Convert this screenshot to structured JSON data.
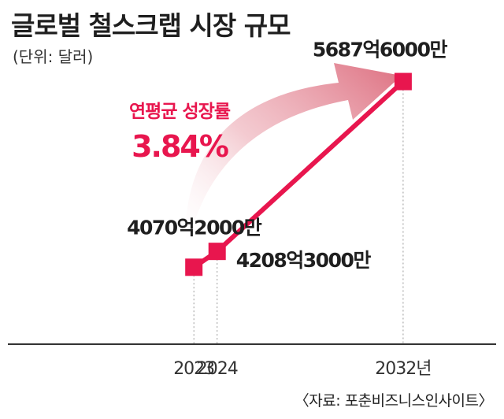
{
  "title": "글로벌 철스크랩 시장 규모",
  "unit": "(단위: 달러)",
  "source": "〈자료: 포춘비즈니스인사이트〉",
  "annotation": {
    "label": "연평균 성장률",
    "value": "3.84%"
  },
  "colors": {
    "accent": "#e8164e",
    "arrow": "#e27a88",
    "axis": "#333333"
  },
  "chart_data": {
    "type": "line",
    "title": "글로벌 철스크랩 시장 규모",
    "x": [
      2023,
      2024,
      2032
    ],
    "x_tick_labels": [
      "2023",
      "2024",
      "2032년"
    ],
    "series": [
      {
        "values": [
          407020000000,
          420830000000,
          568760000000
        ],
        "value_labels": [
          "4070억2000만",
          "4208억3000만",
          "5687억6000만"
        ]
      }
    ],
    "xlim": [
      2015,
      2036
    ],
    "ylim": [
      340000000000,
      600000000000
    ],
    "grid": false
  }
}
